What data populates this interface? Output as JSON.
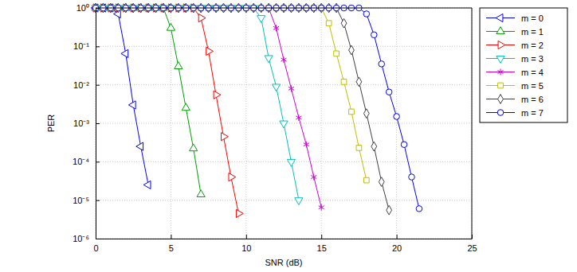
{
  "chart_data": {
    "type": "line",
    "x_label": "SNR (dB)",
    "y_label": "PER",
    "log": "y",
    "grid": true,
    "legend": "right",
    "xlim": [
      0,
      25
    ],
    "xticks": [
      0,
      5,
      10,
      15,
      20,
      25
    ],
    "ylim": [
      1e-06,
      1
    ],
    "yticks": [
      {
        "value": 1e-06,
        "label": "10⁻⁶"
      },
      {
        "value": 1e-05,
        "label": "10⁻⁵"
      },
      {
        "value": 0.0001,
        "label": "10⁻⁴"
      },
      {
        "value": 0.001,
        "label": "10⁻³"
      },
      {
        "value": 0.01,
        "label": "10⁻²"
      },
      {
        "value": 0.1,
        "label": "10⁻¹"
      },
      {
        "value": 1,
        "label": "10⁰"
      }
    ],
    "x": [
      0,
      0.5,
      1,
      1.5,
      2,
      2.5,
      3,
      3.5,
      4,
      4.5,
      5,
      5.5,
      6,
      6.5,
      7,
      7.5,
      8,
      8.5,
      9,
      9.5,
      10,
      10.5,
      11,
      11.5,
      12,
      12.5,
      13,
      13.5,
      14,
      14.5,
      15,
      15.5,
      16,
      16.5,
      17,
      17.5,
      18,
      18.5,
      19,
      19.5,
      20,
      20.5,
      21,
      21.5
    ],
    "series": [
      {
        "name": "m = 0",
        "color": "#0000ff",
        "marker": "triangle-left",
        "line_style": "solid",
        "values": [
          1,
          1,
          1,
          0.7,
          0.065,
          0.003,
          0.00025,
          2.5e-05,
          null,
          null,
          null,
          null,
          null,
          null,
          null,
          null,
          null,
          null,
          null,
          null,
          null,
          null,
          null,
          null,
          null,
          null,
          null,
          null,
          null,
          null,
          null,
          null,
          null,
          null,
          null,
          null,
          null,
          null,
          null,
          null,
          null,
          null,
          null,
          null
        ]
      },
      {
        "name": "m = 1",
        "color": "#00a000",
        "marker": "triangle-up",
        "line_style": "solid",
        "values": [
          1,
          1,
          1,
          1,
          1,
          1,
          1,
          1,
          1,
          1,
          0.3,
          0.03,
          0.0025,
          0.00022,
          1.4e-05,
          null,
          null,
          null,
          null,
          null,
          null,
          null,
          null,
          null,
          null,
          null,
          null,
          null,
          null,
          null,
          null,
          null,
          null,
          null,
          null,
          null,
          null,
          null,
          null,
          null,
          null,
          null,
          null,
          null
        ]
      },
      {
        "name": "m = 2",
        "color": "#ff0000",
        "marker": "triangle-right",
        "line_style": "solid",
        "values": [
          1,
          1,
          1,
          1,
          1,
          1,
          1,
          1,
          1,
          1,
          1,
          1,
          1,
          1,
          0.55,
          0.075,
          0.0055,
          0.00045,
          4e-05,
          4.5e-06,
          null,
          null,
          null,
          null,
          null,
          null,
          null,
          null,
          null,
          null,
          null,
          null,
          null,
          null,
          null,
          null,
          null,
          null,
          null,
          null,
          null,
          null,
          null,
          null
        ]
      },
      {
        "name": "m = 3",
        "color": "#00bfbf",
        "marker": "triangle-down",
        "line_style": "solid",
        "values": [
          1,
          1,
          1,
          1,
          1,
          1,
          1,
          1,
          1,
          1,
          1,
          1,
          1,
          1,
          1,
          1,
          1,
          1,
          1,
          1,
          1,
          1,
          0.55,
          0.05,
          0.009,
          0.001,
          0.0001,
          1e-05,
          null,
          null,
          null,
          null,
          null,
          null,
          null,
          null,
          null,
          null,
          null,
          null,
          null,
          null,
          null,
          null
        ]
      },
      {
        "name": "m = 4",
        "color": "#cc00cc",
        "marker": "asterisk",
        "line_style": "solid",
        "values": [
          1,
          1,
          1,
          1,
          1,
          1,
          1,
          1,
          1,
          1,
          1,
          1,
          1,
          1,
          1,
          1,
          1,
          1,
          1,
          1,
          1,
          1,
          1,
          1,
          0.3,
          0.045,
          0.008,
          0.0014,
          0.00028,
          4e-05,
          6.5e-06,
          null,
          null,
          null,
          null,
          null,
          null,
          null,
          null,
          null,
          null,
          null,
          null,
          null
        ]
      },
      {
        "name": "m = 5",
        "color": "#bfbf00",
        "marker": "square",
        "line_style": "solid",
        "values": [
          1,
          1,
          1,
          1,
          1,
          1,
          1,
          1,
          1,
          1,
          1,
          1,
          1,
          1,
          1,
          1,
          1,
          1,
          1,
          1,
          1,
          1,
          1,
          1,
          1,
          1,
          1,
          1,
          1,
          1,
          1,
          0.4,
          0.065,
          0.012,
          0.002,
          0.00023,
          3.3e-05,
          null,
          null,
          null,
          null,
          null,
          null,
          null
        ]
      },
      {
        "name": "m = 6",
        "color": "#404040",
        "marker": "diamond",
        "line_style": "solid",
        "values": [
          1,
          1,
          1,
          1,
          1,
          1,
          1,
          1,
          1,
          1,
          1,
          1,
          1,
          1,
          1,
          1,
          1,
          1,
          1,
          1,
          1,
          1,
          1,
          1,
          1,
          1,
          1,
          1,
          1,
          1,
          1,
          1,
          1,
          0.4,
          0.08,
          0.012,
          0.0018,
          0.00025,
          3e-05,
          5.5e-06,
          null,
          null,
          null,
          null
        ]
      },
      {
        "name": "m = 7",
        "color": "#0000ff",
        "marker": "circle",
        "line_style": "solid",
        "values": [
          1,
          1,
          1,
          1,
          1,
          1,
          1,
          1,
          1,
          1,
          1,
          1,
          1,
          1,
          1,
          1,
          1,
          1,
          1,
          1,
          1,
          1,
          1,
          1,
          1,
          1,
          1,
          1,
          1,
          1,
          1,
          1,
          1,
          1,
          1,
          1,
          0.7,
          0.2,
          0.035,
          0.0065,
          0.0015,
          0.00028,
          4e-05,
          6e-06
        ]
      }
    ]
  }
}
